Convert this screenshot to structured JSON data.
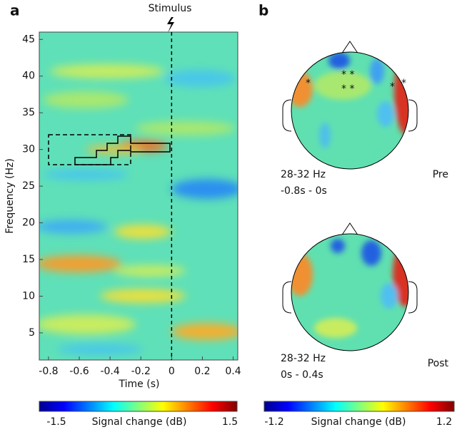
{
  "panel_a": {
    "label": "a",
    "type": "heatmap",
    "stimulus_label": "Stimulus",
    "stimulus_time": 0,
    "xlabel": "Time (s)",
    "ylabel": "Frequency (Hz)",
    "xlim": [
      -0.86,
      0.43
    ],
    "ylim": [
      1.3,
      46
    ],
    "xticks": [
      -0.8,
      -0.6,
      -0.4,
      -0.2,
      0,
      0.2,
      0.4
    ],
    "yticks": [
      5,
      10,
      15,
      20,
      25,
      30,
      35,
      40,
      45
    ],
    "colorbar": {
      "label": "Signal change (dB)",
      "min": -1.5,
      "max": 1.5
    }
  },
  "panel_b": {
    "label": "b",
    "type": "topoplot",
    "maps": [
      {
        "band": "28-32 Hz",
        "window": "-0.8s - 0s",
        "condition": "Pre"
      },
      {
        "band": "28-32 Hz",
        "window": "0s - 0.4s",
        "condition": "Post"
      }
    ],
    "colorbar": {
      "label": "Signal change (dB)",
      "min": -1.2,
      "max": 1.2
    }
  }
}
